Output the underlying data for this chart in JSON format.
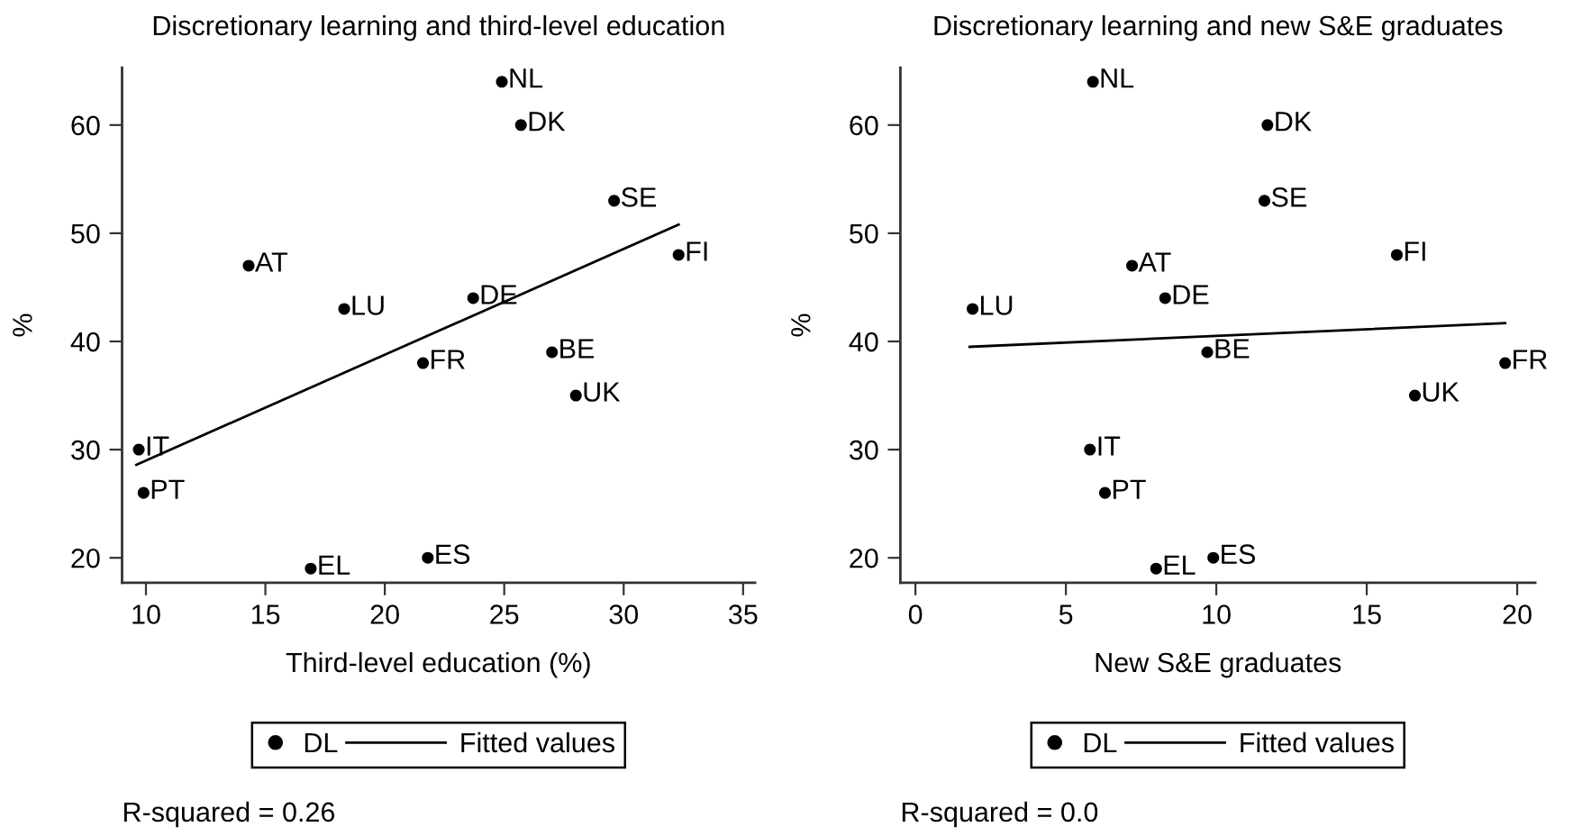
{
  "chart_data": [
    {
      "type": "scatter",
      "title": "Discretionary learning and third-level education",
      "xlabel": "Third-level education (%)",
      "ylabel": "%",
      "xlim": [
        9,
        35.5
      ],
      "ylim": [
        17.7,
        65.3
      ],
      "xticks": [
        10,
        15,
        20,
        25,
        30,
        35
      ],
      "yticks": [
        20,
        30,
        40,
        50,
        60
      ],
      "legend": "bottom",
      "series": [
        {
          "name": "DL",
          "marker": "circle",
          "color": "#000000",
          "x": [
            24.9,
            25.7,
            29.6,
            32.3,
            14.3,
            18.3,
            23.7,
            21.6,
            27.0,
            28.0,
            9.7,
            9.9,
            16.9,
            21.8
          ],
          "values": [
            64,
            60,
            53,
            48,
            47,
            43,
            44,
            38,
            39,
            35,
            30,
            26,
            19,
            20
          ]
        },
        {
          "name": "Fitted values",
          "type": "line",
          "color": "#000000",
          "x": [
            9.6,
            32.3
          ],
          "values": [
            28.6,
            50.8
          ]
        }
      ],
      "annotations": [
        {
          "text": "NL",
          "x": 24.9,
          "y": 64
        },
        {
          "text": "DK",
          "x": 25.7,
          "y": 60
        },
        {
          "text": "SE",
          "x": 29.6,
          "y": 53
        },
        {
          "text": "FI",
          "x": 32.3,
          "y": 48
        },
        {
          "text": "AT",
          "x": 14.3,
          "y": 47
        },
        {
          "text": "LU",
          "x": 18.3,
          "y": 43
        },
        {
          "text": "DE",
          "x": 23.7,
          "y": 44
        },
        {
          "text": "FR",
          "x": 21.6,
          "y": 38
        },
        {
          "text": "BE",
          "x": 27.0,
          "y": 39
        },
        {
          "text": "UK",
          "x": 28.0,
          "y": 35
        },
        {
          "text": "IT",
          "x": 9.7,
          "y": 30
        },
        {
          "text": "PT",
          "x": 9.9,
          "y": 26
        },
        {
          "text": "EL",
          "x": 16.9,
          "y": 19
        },
        {
          "text": "ES",
          "x": 21.8,
          "y": 20
        },
        "R-squared = 0.26"
      ]
    },
    {
      "type": "scatter",
      "title": "Discretionary learning and new S&E graduates",
      "xlabel": "New S&E graduates",
      "ylabel": "%",
      "xlim": [
        -0.5,
        20.6
      ],
      "ylim": [
        17.7,
        65.3
      ],
      "xticks": [
        0,
        5,
        10,
        15,
        20
      ],
      "yticks": [
        20,
        30,
        40,
        50,
        60
      ],
      "legend": "bottom",
      "series": [
        {
          "name": "DL",
          "marker": "circle",
          "color": "#000000",
          "x": [
            5.9,
            11.7,
            11.6,
            16.0,
            7.2,
            8.3,
            1.9,
            9.7,
            19.6,
            16.6,
            5.8,
            6.3,
            8.0,
            9.9
          ],
          "values": [
            64,
            60,
            53,
            48,
            47,
            44,
            43,
            39,
            38,
            35,
            30,
            26,
            19,
            20
          ]
        },
        {
          "name": "Fitted values",
          "type": "line",
          "color": "#000000",
          "x": [
            1.8,
            19.6
          ],
          "values": [
            39.5,
            41.7
          ]
        }
      ],
      "annotations": [
        {
          "text": "NL",
          "x": 5.9,
          "y": 64
        },
        {
          "text": "DK",
          "x": 11.7,
          "y": 60
        },
        {
          "text": "SE",
          "x": 11.6,
          "y": 53
        },
        {
          "text": "FI",
          "x": 16.0,
          "y": 48
        },
        {
          "text": "AT",
          "x": 7.2,
          "y": 47
        },
        {
          "text": "DE",
          "x": 8.3,
          "y": 44
        },
        {
          "text": "LU",
          "x": 1.9,
          "y": 43
        },
        {
          "text": "BE",
          "x": 9.7,
          "y": 39
        },
        {
          "text": "FR",
          "x": 19.6,
          "y": 38
        },
        {
          "text": "UK",
          "x": 16.6,
          "y": 35
        },
        {
          "text": "IT",
          "x": 5.8,
          "y": 30
        },
        {
          "text": "PT",
          "x": 6.3,
          "y": 26
        },
        {
          "text": "EL",
          "x": 8.0,
          "y": 19
        },
        {
          "text": "ES",
          "x": 9.9,
          "y": 20
        },
        "R-squared = 0.0"
      ]
    }
  ]
}
